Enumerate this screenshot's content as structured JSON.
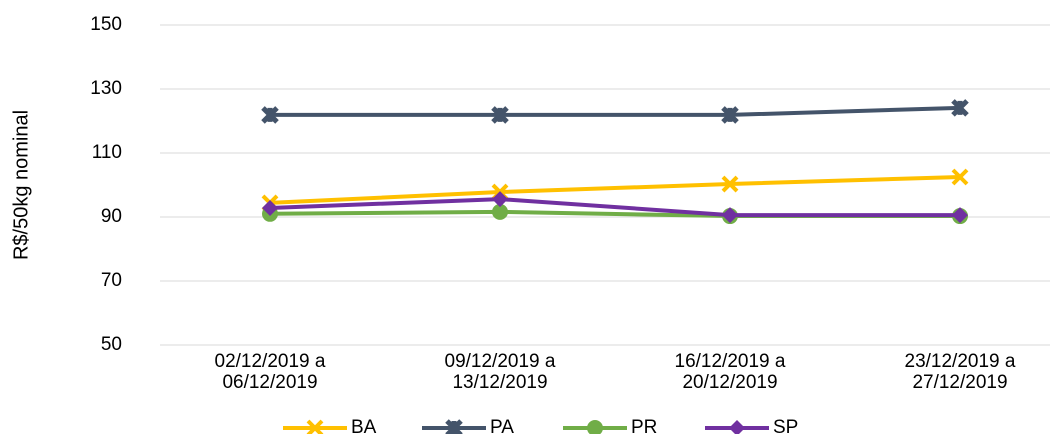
{
  "chart_data": {
    "type": "line",
    "y_label": "R$/50kg nominal",
    "categories": [
      [
        "02/12/2019 a",
        "06/12/2019"
      ],
      [
        "09/12/2019 a",
        "13/12/2019"
      ],
      [
        "16/12/2019 a",
        "20/12/2019"
      ],
      [
        "23/12/2019 a",
        "27/12/2019"
      ]
    ],
    "series": [
      {
        "name": "BA",
        "color": "#ffc000",
        "marker": "x",
        "values": [
          94.4,
          97.8,
          100.3,
          102.5
        ]
      },
      {
        "name": "PA",
        "color": "#44546a",
        "marker": "star",
        "values": [
          121.9,
          121.9,
          121.9,
          124.1
        ]
      },
      {
        "name": "PR",
        "color": "#70ad47",
        "marker": "circle",
        "values": [
          91,
          91.6,
          90.3,
          90.3
        ]
      },
      {
        "name": "SP",
        "color": "#7030a0",
        "marker": "diamond",
        "values": [
          92.8,
          95.6,
          90.6,
          90.6
        ]
      }
    ],
    "ylim": [
      50,
      150
    ],
    "yticks": [
      50,
      70,
      90,
      110,
      130,
      150
    ],
    "grid": true,
    "legend": "bottom"
  }
}
